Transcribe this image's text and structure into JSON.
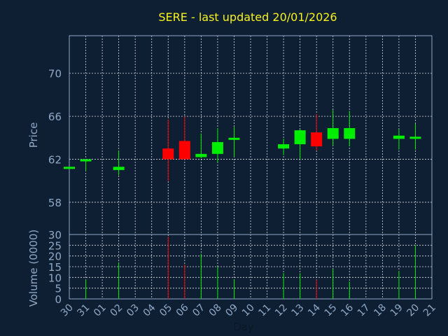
{
  "chart_data": {
    "type": "candlestick",
    "title": "SERE - last updated 20/01/2026",
    "xlabel": "Day",
    "price_panel": {
      "ylabel": "Price",
      "ylim": [
        55,
        73.5
      ],
      "yticks": [
        58,
        62,
        66,
        70
      ],
      "grid": true
    },
    "volume_panel": {
      "ylabel": "Volume (0000)",
      "ylim": [
        0,
        30
      ],
      "yticks": [
        0,
        5,
        10,
        15,
        20,
        25,
        30
      ],
      "grid": true
    },
    "x_tick_labels": [
      "30",
      "31",
      "01",
      "02",
      "03",
      "04",
      "05",
      "06",
      "07",
      "08",
      "09",
      "10",
      "11",
      "12",
      "13",
      "14",
      "15",
      "16",
      "17",
      "18",
      "19",
      "20",
      "21"
    ],
    "colors": {
      "up": "#00ee00",
      "down": "#ff0000",
      "background": "#0f1f33",
      "title": "#f7f21e",
      "axis": "#8fa9c6"
    },
    "candles": [
      {
        "day": "30",
        "open": 61.3,
        "high": 61.3,
        "low": 61.3,
        "close": 61.3,
        "volume": 0
      },
      {
        "day": "31",
        "open": 61.9,
        "high": 62.0,
        "low": 60.9,
        "close": 62.0,
        "volume": 9
      },
      {
        "day": "02",
        "open": 61.0,
        "high": 62.8,
        "low": 60.5,
        "close": 61.3,
        "volume": 17
      },
      {
        "day": "05",
        "open": 63.0,
        "high": 65.7,
        "low": 60.0,
        "close": 62.0,
        "volume": 29
      },
      {
        "day": "06",
        "open": 63.7,
        "high": 66.0,
        "low": 62.0,
        "close": 62.0,
        "volume": 16
      },
      {
        "day": "07",
        "open": 62.2,
        "high": 64.4,
        "low": 62.1,
        "close": 62.5,
        "volume": 21
      },
      {
        "day": "08",
        "open": 62.5,
        "high": 64.9,
        "low": 61.7,
        "close": 63.6,
        "volume": 15
      },
      {
        "day": "09",
        "open": 63.9,
        "high": 65.0,
        "low": 62.2,
        "close": 64.0,
        "volume": 9
      },
      {
        "day": "12",
        "open": 63.0,
        "high": 63.9,
        "low": 62.4,
        "close": 63.4,
        "volume": 12
      },
      {
        "day": "13",
        "open": 63.4,
        "high": 64.8,
        "low": 62.0,
        "close": 64.7,
        "volume": 12
      },
      {
        "day": "14",
        "open": 64.5,
        "high": 66.2,
        "low": 62.8,
        "close": 63.2,
        "volume": 9
      },
      {
        "day": "15",
        "open": 63.9,
        "high": 66.6,
        "low": 63.3,
        "close": 64.9,
        "volume": 14
      },
      {
        "day": "16",
        "open": 63.9,
        "high": 66.5,
        "low": 63.2,
        "close": 64.9,
        "volume": 8
      },
      {
        "day": "19",
        "open": 63.9,
        "high": 64.8,
        "low": 62.9,
        "close": 64.2,
        "volume": 13
      },
      {
        "day": "20",
        "open": 63.9,
        "high": 65.3,
        "low": 62.9,
        "close": 64.1,
        "volume": 25
      }
    ]
  }
}
